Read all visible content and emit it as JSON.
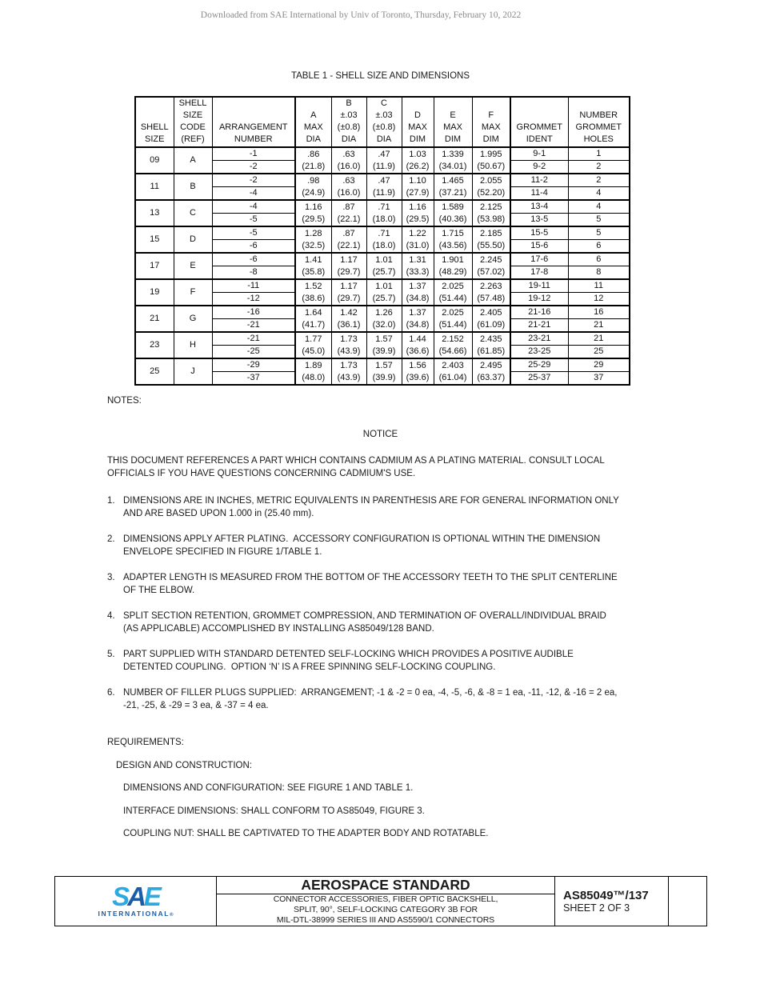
{
  "page": {
    "watermark": "Downloaded from SAE International by Univ of Toronto, Thursday, February 10, 2022",
    "table_title": "TABLE 1 - SHELL SIZE AND DIMENSIONS"
  },
  "table": {
    "headers": [
      "SHELL\nSIZE",
      "SHELL\nSIZE\nCODE\n(REF)",
      "ARRANGEMENT\nNUMBER",
      "A\nMAX\nDIA",
      "B\n±.03\n(±0.8)\nDIA",
      "C\n±.03\n(±0.8)\nDIA",
      "D\nMAX\nDIM",
      "E\nMAX\nDIM",
      "F\nMAX\nDIM",
      "GROMMET\nIDENT",
      "NUMBER\nGROMMET\nHOLES"
    ],
    "groups": [
      {
        "shell_size": "09",
        "code": "A",
        "rows": [
          {
            "arrangement": "-1",
            "grommet": "9-1",
            "holes": "1"
          },
          {
            "arrangement": "-2",
            "grommet": "9-2",
            "holes": "2"
          }
        ],
        "dims": {
          "a": ".86\n(21.8)",
          "b": ".63\n(16.0)",
          "c": ".47\n(11.9)",
          "d": "1.03\n(26.2)",
          "e": "1.339\n(34.01)",
          "f": "1.995\n(50.67)"
        }
      },
      {
        "shell_size": "11",
        "code": "B",
        "rows": [
          {
            "arrangement": "-2",
            "grommet": "11-2",
            "holes": "2"
          },
          {
            "arrangement": "-4",
            "grommet": "11-4",
            "holes": "4"
          }
        ],
        "dims": {
          "a": ".98\n(24.9)",
          "b": ".63\n(16.0)",
          "c": ".47\n(11.9)",
          "d": "1.10\n(27.9)",
          "e": "1.465\n(37.21)",
          "f": "2.055\n(52.20)"
        }
      },
      {
        "shell_size": "13",
        "code": "C",
        "rows": [
          {
            "arrangement": "-4",
            "grommet": "13-4",
            "holes": "4"
          },
          {
            "arrangement": "-5",
            "grommet": "13-5",
            "holes": "5"
          }
        ],
        "dims": {
          "a": "1.16\n(29.5)",
          "b": ".87\n(22.1)",
          "c": ".71\n(18.0)",
          "d": "1.16\n(29.5)",
          "e": "1.589\n(40.36)",
          "f": "2.125\n(53.98)"
        }
      },
      {
        "shell_size": "15",
        "code": "D",
        "rows": [
          {
            "arrangement": "-5",
            "grommet": "15-5",
            "holes": "5"
          },
          {
            "arrangement": "-6",
            "grommet": "15-6",
            "holes": "6"
          }
        ],
        "dims": {
          "a": "1.28\n(32.5)",
          "b": ".87\n(22.1)",
          "c": ".71\n(18.0)",
          "d": "1.22\n(31.0)",
          "e": "1.715\n(43.56)",
          "f": "2.185\n(55.50)"
        }
      },
      {
        "shell_size": "17",
        "code": "E",
        "rows": [
          {
            "arrangement": "-6",
            "grommet": "17-6",
            "holes": "6"
          },
          {
            "arrangement": "-8",
            "grommet": "17-8",
            "holes": "8"
          }
        ],
        "dims": {
          "a": "1.41\n(35.8)",
          "b": "1.17\n(29.7)",
          "c": "1.01\n(25.7)",
          "d": "1.31\n(33.3)",
          "e": "1.901\n(48.29)",
          "f": "2.245\n(57.02)"
        }
      },
      {
        "shell_size": "19",
        "code": "F",
        "rows": [
          {
            "arrangement": "-11",
            "grommet": "19-11",
            "holes": "11"
          },
          {
            "arrangement": "-12",
            "grommet": "19-12",
            "holes": "12"
          }
        ],
        "dims": {
          "a": "1.52\n(38.6)",
          "b": "1.17\n(29.7)",
          "c": "1.01\n(25.7)",
          "d": "1.37\n(34.8)",
          "e": "2.025\n(51.44)",
          "f": "2.263\n(57.48)"
        }
      },
      {
        "shell_size": "21",
        "code": "G",
        "rows": [
          {
            "arrangement": "-16",
            "grommet": "21-16",
            "holes": "16"
          },
          {
            "arrangement": "-21",
            "grommet": "21-21",
            "holes": "21"
          }
        ],
        "dims": {
          "a": "1.64\n(41.7)",
          "b": "1.42\n(36.1)",
          "c": "1.26\n(32.0)",
          "d": "1.37\n(34.8)",
          "e": "2.025\n(51.44)",
          "f": "2.405\n(61.09)"
        }
      },
      {
        "shell_size": "23",
        "code": "H",
        "rows": [
          {
            "arrangement": "-21",
            "grommet": "23-21",
            "holes": "21"
          },
          {
            "arrangement": "-25",
            "grommet": "23-25",
            "holes": "25"
          }
        ],
        "dims": {
          "a": "1.77\n(45.0)",
          "b": "1.73\n(43.9)",
          "c": "1.57\n(39.9)",
          "d": "1.44\n(36.6)",
          "e": "2.152\n(54.66)",
          "f": "2.435\n(61.85)"
        }
      },
      {
        "shell_size": "25",
        "code": "J",
        "rows": [
          {
            "arrangement": "-29",
            "grommet": "25-29",
            "holes": "29"
          },
          {
            "arrangement": "-37",
            "grommet": "25-37",
            "holes": "37"
          }
        ],
        "dims": {
          "a": "1.89\n(48.0)",
          "b": "1.73\n(43.9)",
          "c": "1.57\n(39.9)",
          "d": "1.56\n(39.6)",
          "e": "2.403\n(61.04)",
          "f": "2.495\n(63.37)"
        }
      }
    ]
  },
  "notes": {
    "label": "NOTES:",
    "notice_title": "NOTICE",
    "notice_body": "THIS DOCUMENT REFERENCES A PART WHICH CONTAINS CADMIUM AS A PLATING MATERIAL. CONSULT LOCAL\nOFFICIALS IF YOU HAVE QUESTIONS CONCERNING CADMIUM'S USE.",
    "items": [
      {
        "num": "1.",
        "text": "DIMENSIONS ARE IN INCHES, METRIC EQUIVALENTS IN PARENTHESIS ARE FOR GENERAL INFORMATION ONLY\nAND ARE BASED UPON 1.000 in (25.40 mm)."
      },
      {
        "num": "2.",
        "text": "DIMENSIONS APPLY AFTER PLATING.  ACCESSORY CONFIGURATION IS OPTIONAL WITHIN THE DIMENSION\nENVELOPE SPECIFIED IN FIGURE 1/TABLE 1."
      },
      {
        "num": "3.",
        "text": "ADAPTER LENGTH IS MEASURED FROM THE BOTTOM OF THE ACCESSORY TEETH TO THE SPLIT CENTERLINE\nOF THE ELBOW."
      },
      {
        "num": "4.",
        "text": "SPLIT SECTION RETENTION, GROMMET COMPRESSION, AND TERMINATION OF OVERALL/INDIVIDUAL BRAID\n(AS APPLICABLE) ACCOMPLISHED BY INSTALLING AS85049/128 BAND."
      },
      {
        "num": "5.",
        "text": "PART SUPPLIED WITH STANDARD DETENTED SELF-LOCKING WHICH PROVIDES A POSITIVE AUDIBLE\nDETENTED COUPLING.  OPTION ‘N’ IS A FREE SPINNING SELF-LOCKING COUPLING."
      },
      {
        "num": "6.",
        "text": "NUMBER OF FILLER PLUGS SUPPLIED:  ARRANGEMENT; -1 & -2 = 0 ea, -4, -5, -6, & -8 = 1 ea, -11, -12, & -16 = 2 ea,\n-21, -25, & -29 = 3 ea, & -37 = 4 ea."
      }
    ]
  },
  "requirements": {
    "label": "REQUIREMENTS:",
    "design_label": "DESIGN AND CONSTRUCTION:",
    "items": [
      "DIMENSIONS AND CONFIGURATION:  SEE FIGURE 1 AND TABLE 1.",
      "INTERFACE DIMENSIONS:  SHALL CONFORM TO AS85049, FIGURE 3.",
      "COUPLING NUT:  SHALL BE CAPTIVATED TO THE ADAPTER BODY AND ROTATABLE."
    ]
  },
  "footer": {
    "logo": {
      "s": "S",
      "a": "A",
      "e": "E",
      "international": "INTERNATIONAL",
      "reg": "®"
    },
    "title": "AEROSPACE STANDARD",
    "subtitle": "CONNECTOR ACCESSORIES, FIBER OPTIC BACKSHELL,\nSPLIT, 90°, SELF-LOCKING CATEGORY 3B FOR\nMIL-DTL-38999 SERIES III AND AS5590/1 CONNECTORS",
    "doc_number": "AS85049™/137",
    "sheet": "SHEET 2 OF 3"
  },
  "colors": {
    "sae_light_blue": "#2BA9E0",
    "sae_dark_blue": "#1B5CA8"
  }
}
